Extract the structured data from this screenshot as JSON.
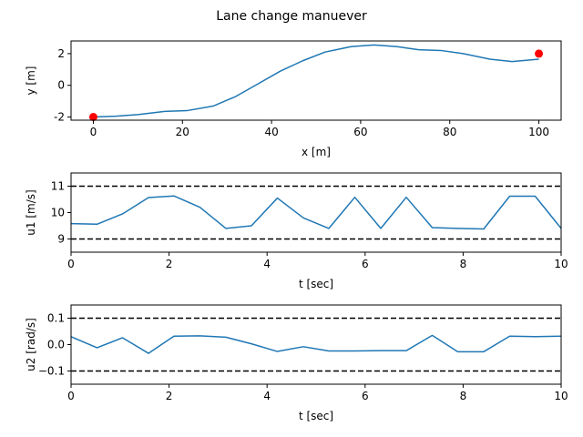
{
  "title": "Lane change manuever",
  "chart_data": [
    {
      "type": "line",
      "xlabel": "x [m]",
      "ylabel": "y [m]",
      "xlim": [
        -5,
        105
      ],
      "ylim": [
        -2.2,
        2.8
      ],
      "xticks": [
        0,
        20,
        40,
        60,
        80,
        100
      ],
      "yticks": [
        -2,
        0,
        2
      ],
      "series": [
        {
          "x": [
            0,
            5,
            10,
            16,
            21,
            27,
            32,
            37,
            42,
            47,
            52,
            58,
            63,
            68,
            73,
            78,
            83,
            89,
            94,
            100
          ],
          "y": [
            -2.0,
            -1.95,
            -1.85,
            -1.65,
            -1.6,
            -1.3,
            -0.7,
            0.1,
            0.9,
            1.55,
            2.1,
            2.45,
            2.55,
            2.45,
            2.25,
            2.2,
            2.0,
            1.65,
            1.5,
            1.65
          ]
        }
      ],
      "markers": [
        {
          "x": 0,
          "y": -2,
          "color": "#ff0000"
        },
        {
          "x": 100,
          "y": 2,
          "color": "#ff0000"
        }
      ]
    },
    {
      "type": "line",
      "xlabel": "t [sec]",
      "ylabel": "u1 [m/s]",
      "xlim": [
        0,
        10
      ],
      "ylim": [
        8.5,
        11.5
      ],
      "xticks": [
        0,
        2,
        4,
        6,
        8,
        10
      ],
      "yticks": [
        9,
        10,
        11
      ],
      "bounds": [
        9,
        11
      ],
      "series": [
        {
          "x": [
            0,
            0.53,
            1.05,
            1.58,
            2.1,
            2.63,
            3.16,
            3.68,
            4.21,
            4.74,
            5.26,
            5.79,
            6.32,
            6.84,
            7.37,
            7.89,
            8.42,
            8.95,
            9.47,
            10
          ],
          "y": [
            9.58,
            9.56,
            9.95,
            10.57,
            10.63,
            10.2,
            9.4,
            9.5,
            10.55,
            9.8,
            9.4,
            10.58,
            9.4,
            10.58,
            9.43,
            9.4,
            9.38,
            10.62,
            10.62,
            9.4
          ]
        }
      ]
    },
    {
      "type": "line",
      "xlabel": "t [sec]",
      "ylabel": "u2 [rad/s]",
      "xlim": [
        0,
        10
      ],
      "ylim": [
        -0.15,
        0.15
      ],
      "xticks": [
        0,
        2,
        4,
        6,
        8,
        10
      ],
      "yticks": [
        -0.1,
        0.0,
        0.1
      ],
      "ytick_labels": [
        "−0.1",
        "0.0",
        "0.1"
      ],
      "bounds": [
        -0.1,
        0.1
      ],
      "series": [
        {
          "x": [
            0,
            0.53,
            1.05,
            1.58,
            2.1,
            2.63,
            3.16,
            3.68,
            4.21,
            4.74,
            5.26,
            5.79,
            6.32,
            6.84,
            7.37,
            7.89,
            8.42,
            8.95,
            9.47,
            10
          ],
          "y": [
            0.03,
            -0.012,
            0.026,
            -0.033,
            0.032,
            0.033,
            0.028,
            0.003,
            -0.026,
            -0.008,
            -0.024,
            -0.024,
            -0.023,
            -0.023,
            0.035,
            -0.027,
            -0.027,
            0.032,
            0.03,
            0.032
          ]
        }
      ]
    }
  ]
}
